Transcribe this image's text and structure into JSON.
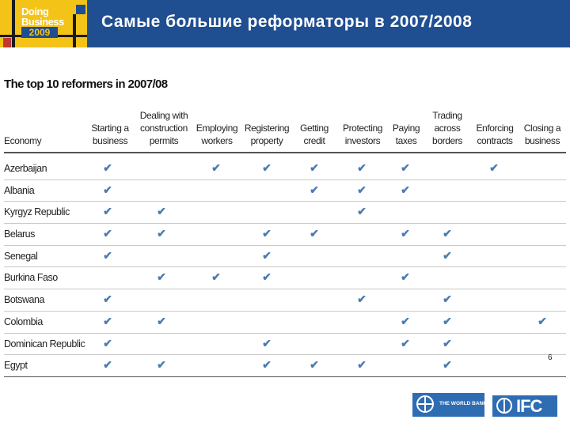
{
  "header": {
    "logo": {
      "line1": "Doing",
      "line2": "Business",
      "year": "2009"
    },
    "title": "Самые большие реформаторы в 2007/2008"
  },
  "table": {
    "title": "The top 10 reformers in 2007/08",
    "columns": [
      {
        "lines": [
          "Economy"
        ]
      },
      {
        "lines": [
          "Starting a",
          "business"
        ]
      },
      {
        "lines": [
          "Dealing with",
          "construction",
          "permits"
        ]
      },
      {
        "lines": [
          "Employing",
          "workers"
        ]
      },
      {
        "lines": [
          "Registering",
          "property"
        ]
      },
      {
        "lines": [
          "Getting",
          "credit"
        ]
      },
      {
        "lines": [
          "Protecting",
          "investors"
        ]
      },
      {
        "lines": [
          "Paying",
          "taxes"
        ]
      },
      {
        "lines": [
          "Trading",
          "across",
          "borders"
        ]
      },
      {
        "lines": [
          "Enforcing",
          "contracts"
        ]
      },
      {
        "lines": [
          "Closing a",
          "business"
        ]
      }
    ],
    "check_symbol": "✔",
    "rows": [
      {
        "economy": "Azerbaijan",
        "checks": [
          1,
          0,
          1,
          1,
          1,
          1,
          1,
          0,
          1,
          0
        ]
      },
      {
        "economy": "Albania",
        "checks": [
          1,
          0,
          0,
          0,
          1,
          1,
          1,
          0,
          0,
          0
        ]
      },
      {
        "economy": "Kyrgyz Republic",
        "checks": [
          1,
          1,
          0,
          0,
          0,
          1,
          0,
          0,
          0,
          0
        ]
      },
      {
        "economy": "Belarus",
        "checks": [
          1,
          1,
          0,
          1,
          1,
          0,
          1,
          1,
          0,
          0
        ]
      },
      {
        "economy": "Senegal",
        "checks": [
          1,
          0,
          0,
          1,
          0,
          0,
          0,
          1,
          0,
          0
        ]
      },
      {
        "economy": "Burkina Faso",
        "checks": [
          0,
          1,
          1,
          1,
          0,
          0,
          1,
          0,
          0,
          0
        ]
      },
      {
        "economy": "Botswana",
        "checks": [
          1,
          0,
          0,
          0,
          0,
          1,
          0,
          1,
          0,
          0
        ]
      },
      {
        "economy": "Colombia",
        "checks": [
          1,
          1,
          0,
          0,
          0,
          0,
          1,
          1,
          0,
          1
        ]
      },
      {
        "economy": "Dominican Republic",
        "checks": [
          1,
          0,
          0,
          1,
          0,
          0,
          1,
          1,
          0,
          0
        ]
      },
      {
        "economy": "Egypt",
        "checks": [
          1,
          1,
          0,
          1,
          1,
          1,
          0,
          1,
          0,
          0
        ]
      }
    ]
  },
  "page_number": "6",
  "footer": {
    "world_bank_label": "THE WORLD BANK",
    "ifc_label": "IFC"
  },
  "colors": {
    "header_bg": "#1f4e91",
    "logo_bg": "#f3c318",
    "check": "#4a7bb0"
  }
}
